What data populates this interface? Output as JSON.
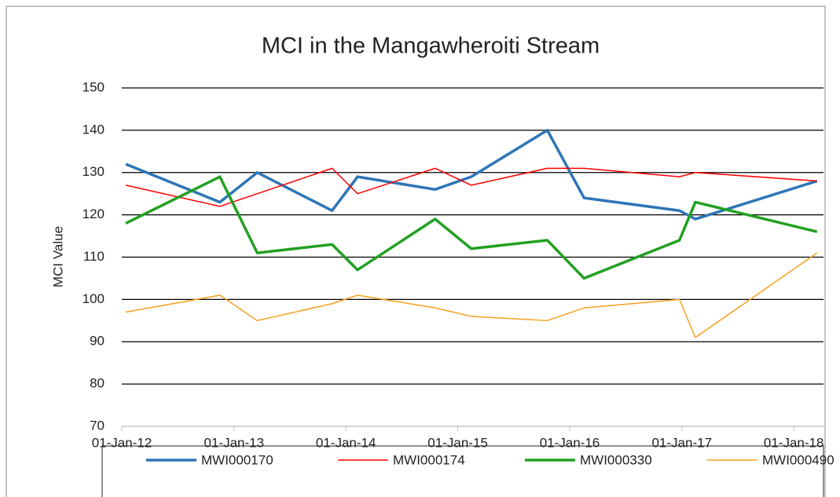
{
  "chart_data": {
    "type": "line",
    "title": "MCI in the Mangawheroiti Stream",
    "y_label": "MCI Value",
    "x": [
      "2012-01-14",
      "2012-11-16",
      "2013-03-18",
      "2013-11-17",
      "2014-02-08",
      "2014-10-19",
      "2015-02-14",
      "2015-10-20",
      "2016-02-17",
      "2016-12-24",
      "2017-02-14",
      "2018-03-18"
    ],
    "series": [
      {
        "name": "MWI000170",
        "color": "#2e75b6",
        "values": [
          132,
          123,
          130,
          121,
          129,
          126,
          129,
          140,
          124,
          121,
          119,
          128
        ]
      },
      {
        "name": "MWI000174",
        "color": "#ff0000",
        "values": [
          127,
          122,
          125,
          131,
          125,
          131,
          127,
          131,
          131,
          129,
          130,
          128
        ]
      },
      {
        "name": "MWI000330",
        "color": "#22a022",
        "values": [
          118,
          129,
          111,
          113,
          107,
          119,
          112,
          114,
          105,
          114,
          123,
          116
        ]
      },
      {
        "name": "MWI000490",
        "color": "#f5a01e",
        "values": [
          97,
          101,
          95,
          99,
          101,
          98,
          96,
          95,
          98,
          100,
          91,
          111
        ]
      }
    ],
    "xlim": [
      "2012-01-01",
      "2018-04-08"
    ],
    "xticks": [
      {
        "value": "2012-01-01",
        "label": "01-Jan-12"
      },
      {
        "value": "2013-01-01",
        "label": "01-Jan-13"
      },
      {
        "value": "2014-01-01",
        "label": "01-Jan-14"
      },
      {
        "value": "2015-01-01",
        "label": "01-Jan-15"
      },
      {
        "value": "2016-01-01",
        "label": "01-Jan-16"
      },
      {
        "value": "2017-01-01",
        "label": "01-Jan-17"
      },
      {
        "value": "2018-01-01",
        "label": "01-Jan-18"
      }
    ],
    "ylim": [
      70,
      150
    ],
    "yticks": [
      70,
      80,
      90,
      100,
      110,
      120,
      130,
      140,
      150
    ],
    "grid": true,
    "legend": "bottom"
  }
}
